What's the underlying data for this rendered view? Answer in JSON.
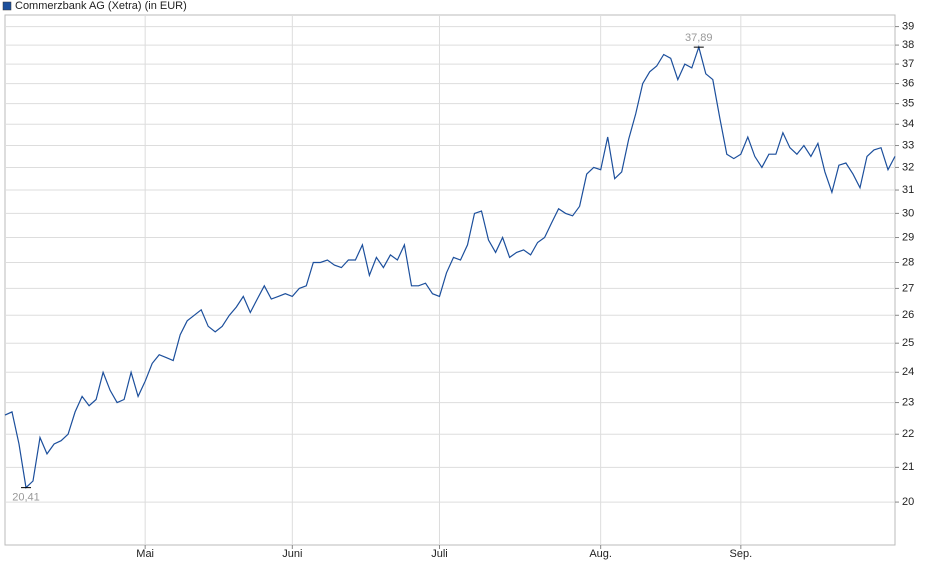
{
  "chart_data": {
    "type": "line",
    "categories": [
      null,
      null,
      null,
      null,
      null,
      null,
      null,
      null,
      null,
      null,
      null,
      null,
      null,
      null,
      null,
      null,
      null,
      null,
      null,
      null,
      "Mai",
      null,
      null,
      null,
      null,
      null,
      null,
      null,
      null,
      null,
      null,
      null,
      null,
      null,
      null,
      null,
      null,
      null,
      null,
      null,
      null,
      "Juni",
      null,
      null,
      null,
      null,
      null,
      null,
      null,
      null,
      null,
      null,
      null,
      null,
      null,
      null,
      null,
      null,
      null,
      null,
      null,
      null,
      "Juli",
      null,
      null,
      null,
      null,
      null,
      null,
      null,
      null,
      null,
      null,
      null,
      null,
      null,
      null,
      null,
      null,
      null,
      null,
      null,
      null,
      null,
      null,
      "Aug.",
      null,
      null,
      null,
      null,
      null,
      null,
      null,
      null,
      null,
      null,
      null,
      null,
      null,
      null,
      null,
      null,
      null,
      null,
      null,
      "Sep.",
      null,
      null,
      null,
      null,
      null,
      null,
      null,
      null,
      null,
      null,
      null,
      null,
      null,
      null,
      null,
      null,
      null,
      null,
      null,
      null,
      null,
      null
    ],
    "series": [
      {
        "name": "Commerzbank AG (Xetra) (in EUR)",
        "color": "#1c4f9c",
        "values": [
          22.6,
          22.7,
          21.7,
          20.41,
          20.6,
          21.9,
          21.4,
          21.7,
          21.8,
          22.0,
          22.7,
          23.2,
          22.9,
          23.1,
          24.0,
          23.4,
          23.0,
          23.1,
          24.0,
          23.2,
          23.7,
          24.3,
          24.6,
          24.5,
          24.4,
          25.3,
          25.8,
          26.0,
          26.2,
          25.6,
          25.4,
          25.6,
          26.0,
          26.3,
          26.7,
          26.1,
          26.6,
          27.1,
          26.6,
          26.7,
          26.8,
          26.7,
          27.0,
          27.1,
          28.0,
          28.0,
          28.1,
          27.9,
          27.8,
          28.1,
          28.1,
          28.7,
          27.5,
          28.2,
          27.8,
          28.3,
          28.1,
          28.7,
          27.1,
          27.1,
          27.2,
          26.8,
          26.7,
          27.6,
          28.2,
          28.1,
          28.7,
          30.0,
          30.1,
          28.9,
          28.4,
          29.0,
          28.2,
          28.4,
          28.5,
          28.3,
          28.8,
          29.0,
          29.6,
          30.2,
          30.0,
          29.9,
          30.3,
          31.7,
          32.0,
          31.9,
          33.4,
          31.5,
          31.8,
          33.3,
          34.5,
          36.0,
          36.6,
          36.9,
          37.5,
          37.3,
          36.2,
          37.0,
          36.8,
          37.89,
          36.5,
          36.2,
          34.3,
          32.6,
          32.4,
          32.6,
          33.4,
          32.5,
          32.0,
          32.6,
          32.6,
          33.6,
          32.9,
          32.6,
          33.0,
          32.5,
          33.1,
          31.8,
          30.9,
          32.1,
          32.2,
          31.7,
          31.1,
          32.5,
          32.8,
          32.9,
          31.9,
          32.5
        ],
        "value_labels": [
          null,
          null,
          null,
          "20,41",
          null,
          null,
          null,
          null,
          null,
          null,
          null,
          null,
          null,
          null,
          null,
          null,
          null,
          null,
          null,
          null,
          null,
          null,
          null,
          null,
          null,
          null,
          null,
          null,
          null,
          null,
          null,
          null,
          null,
          null,
          null,
          null,
          null,
          null,
          null,
          null,
          null,
          null,
          null,
          null,
          null,
          null,
          null,
          null,
          null,
          null,
          null,
          null,
          null,
          null,
          null,
          null,
          null,
          null,
          null,
          null,
          null,
          null,
          null,
          null,
          null,
          null,
          null,
          null,
          null,
          null,
          null,
          null,
          null,
          null,
          null,
          null,
          null,
          null,
          null,
          null,
          null,
          null,
          null,
          null,
          null,
          null,
          null,
          null,
          null,
          null,
          null,
          null,
          null,
          null,
          null,
          null,
          null,
          null,
          null,
          "37,89",
          null,
          null,
          null,
          null,
          null,
          null,
          null,
          null,
          null,
          null,
          null,
          null,
          null,
          null,
          null,
          null,
          null,
          null,
          null,
          null,
          null,
          null,
          null,
          null,
          null,
          null,
          null,
          null
        ]
      }
    ],
    "ylim": [
      18.83,
      39.64
    ],
    "yticks": [
      20,
      21,
      22,
      23,
      24,
      25,
      26,
      27,
      28,
      29,
      30,
      31,
      32,
      33,
      34,
      35,
      36,
      37,
      38,
      39
    ],
    "log_scale": true,
    "grid": true,
    "legend": "top-left"
  }
}
